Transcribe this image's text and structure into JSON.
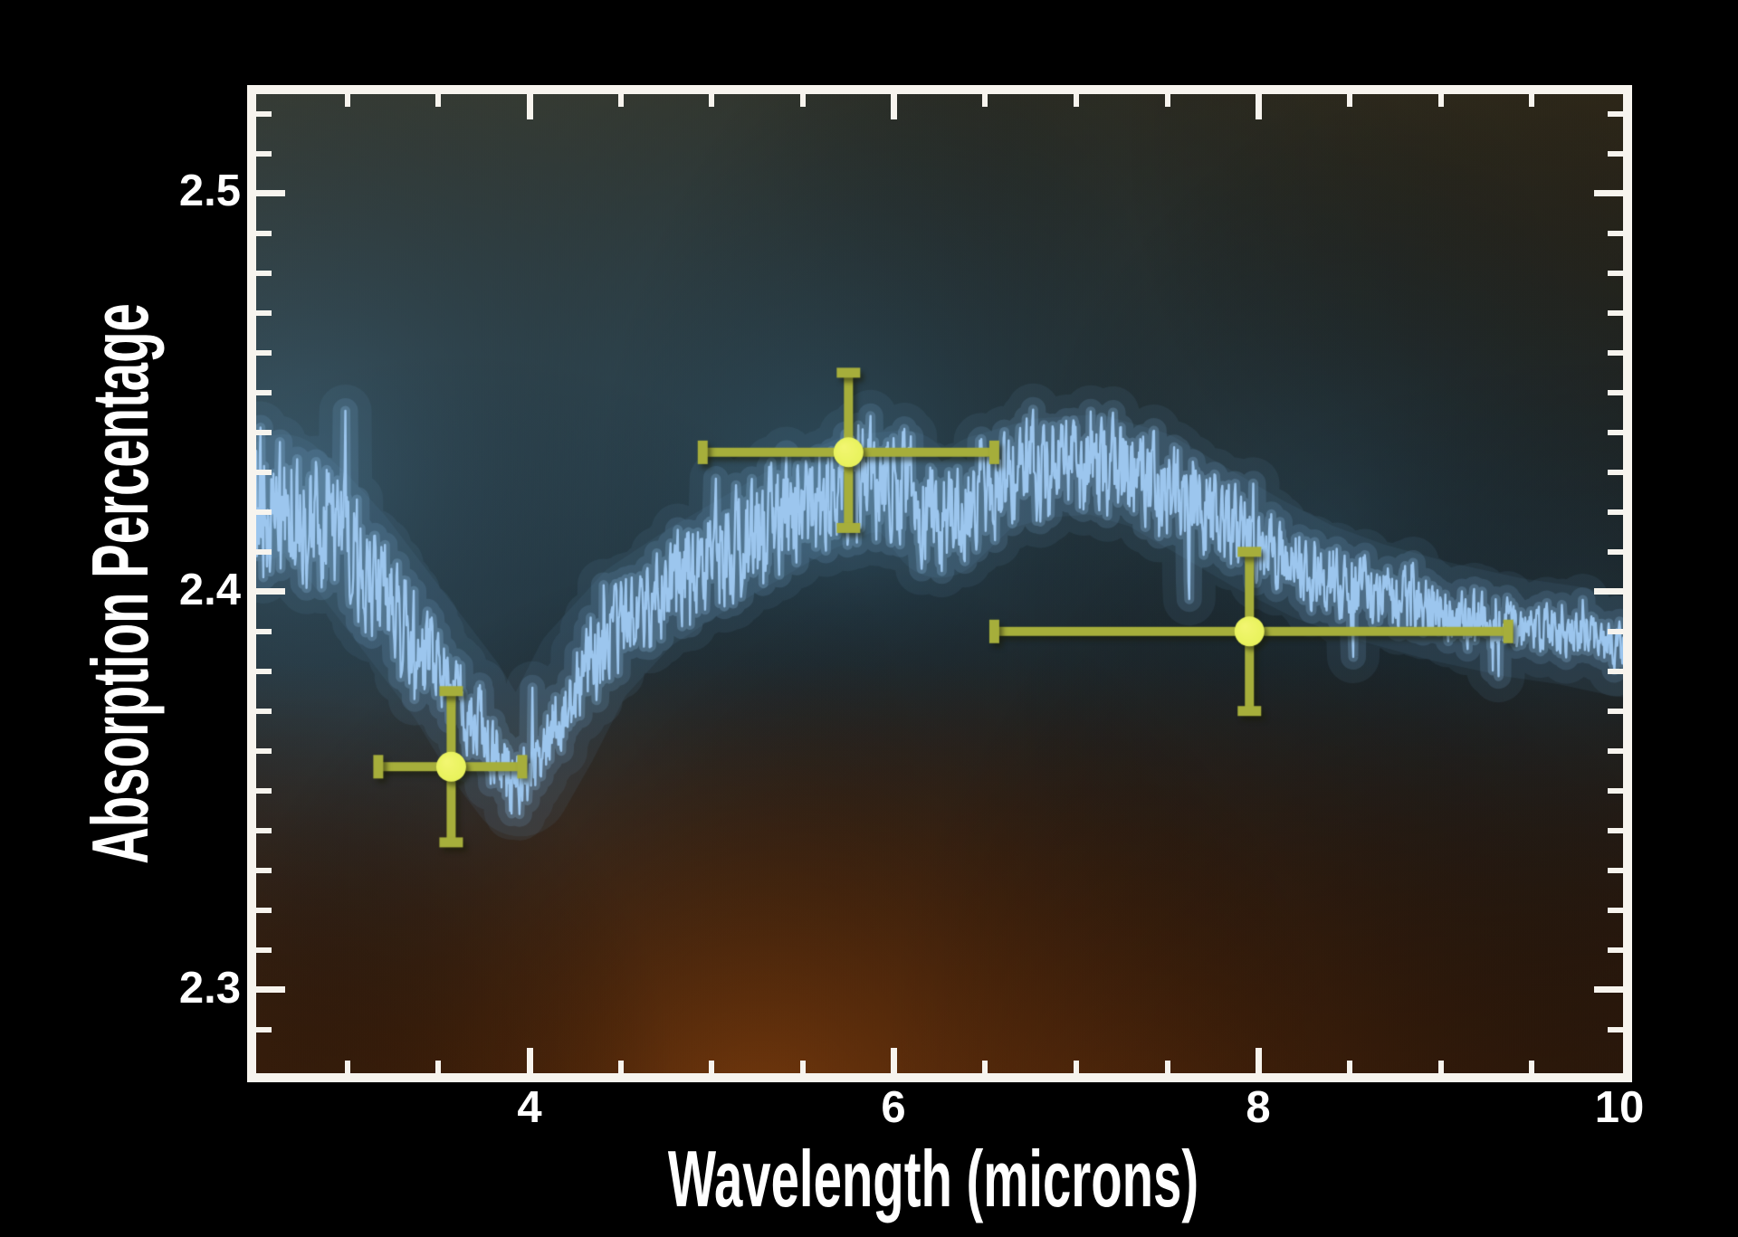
{
  "figure": {
    "outer_background": "#000000",
    "frame_color": "#f7f4ee",
    "text_color": "#ffffff",
    "plot_background_palette": {
      "top_brown": "#4e4124",
      "mid_blue": "#3c6379",
      "bottom_rust": "#7a3a10",
      "corner_dark": "#221a10"
    }
  },
  "labels": {
    "xtitle": "Wavelength (microns)",
    "ytitle": "Absorption Percentage",
    "yticks": [
      "2.5",
      "2.4",
      "2.3"
    ],
    "xticks": [
      "4",
      "6",
      "8",
      "10"
    ]
  },
  "chart_data": {
    "type": "line",
    "title": "",
    "xlabel": "Wavelength (microns)",
    "ylabel": "Absorption Percentage",
    "xlim": [
      2.5,
      10.0
    ],
    "ylim": [
      2.279,
      2.525
    ],
    "x_major_ticks": [
      4,
      6,
      8,
      10
    ],
    "x_minor_tick_step": 0.5,
    "y_major_ticks": [
      2.3,
      2.4,
      2.5
    ],
    "y_minor_tick_step": 0.01,
    "grid": false,
    "legend": false,
    "series": [
      {
        "name": "model-spectrum",
        "style": "noisy-line",
        "color": "#9cc6ee",
        "glow_color": "#6f9fc4",
        "anchors_format": [
          "wavelength_microns",
          "absorption_percent_mean",
          "noise_half_amplitude"
        ],
        "anchors": [
          [
            2.5,
            2.42,
            0.016
          ],
          [
            2.65,
            2.427,
            0.015
          ],
          [
            2.8,
            2.421,
            0.014
          ],
          [
            3.0,
            2.411,
            0.013
          ],
          [
            3.2,
            2.399,
            0.0115
          ],
          [
            3.4,
            2.387,
            0.01
          ],
          [
            3.6,
            2.375,
            0.009
          ],
          [
            3.8,
            2.36,
            0.008
          ],
          [
            3.95,
            2.351,
            0.007
          ],
          [
            4.1,
            2.363,
            0.0075
          ],
          [
            4.3,
            2.381,
            0.009
          ],
          [
            4.6,
            2.396,
            0.01
          ],
          [
            4.9,
            2.405,
            0.011
          ],
          [
            5.2,
            2.413,
            0.0115
          ],
          [
            5.5,
            2.421,
            0.012
          ],
          [
            5.8,
            2.427,
            0.012
          ],
          [
            6.05,
            2.428,
            0.0115
          ],
          [
            6.25,
            2.416,
            0.0105
          ],
          [
            6.5,
            2.427,
            0.011
          ],
          [
            6.8,
            2.431,
            0.0105
          ],
          [
            7.1,
            2.432,
            0.01
          ],
          [
            7.4,
            2.428,
            0.0095
          ],
          [
            7.7,
            2.42,
            0.009
          ],
          [
            8.0,
            2.412,
            0.008
          ],
          [
            8.3,
            2.405,
            0.0075
          ],
          [
            8.6,
            2.4,
            0.007
          ],
          [
            9.0,
            2.395,
            0.006
          ],
          [
            9.4,
            2.391,
            0.0055
          ],
          [
            9.7,
            2.389,
            0.005
          ],
          [
            10.0,
            2.386,
            0.0045
          ]
        ]
      },
      {
        "name": "band-averaged-measurements",
        "style": "points-with-error-bars",
        "marker_color": "#e7f259",
        "marker_radius_px": 16.5,
        "bar_color": "#a6ae3b",
        "points": [
          {
            "x": 3.57,
            "y": 2.356,
            "xerr": [
              0.4,
              0.39
            ],
            "yerr": [
              0.019,
              0.019
            ]
          },
          {
            "x": 5.75,
            "y": 2.435,
            "xerr": [
              0.8,
              0.8
            ],
            "yerr": [
              0.019,
              0.02
            ]
          },
          {
            "x": 7.95,
            "y": 2.39,
            "xerr": [
              1.4,
              1.42
            ],
            "yerr": [
              0.02,
              0.02
            ]
          }
        ]
      }
    ],
    "background_description": "diffuse glow field: olive-brown across the top, steel-blue halo hugging the spectrum trace, rust-orange glow at bottom center"
  }
}
